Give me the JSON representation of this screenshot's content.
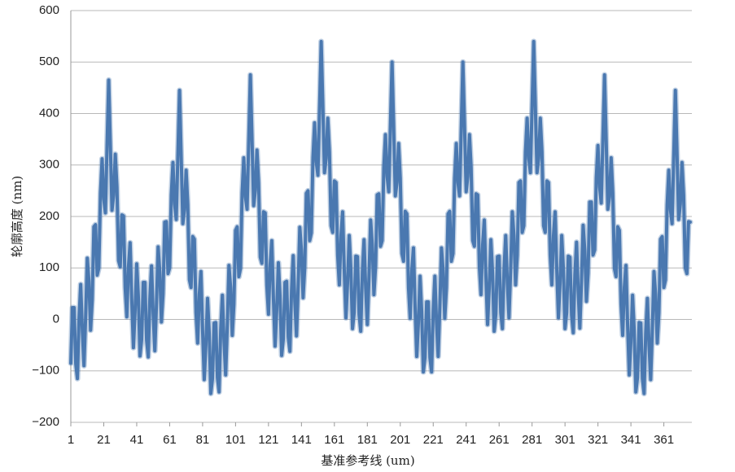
{
  "chart_data": {
    "type": "line",
    "x_label": "基准参考线 (um)",
    "y_label": "轮廓高度 (nm)",
    "xlim": [
      1,
      378
    ],
    "xticks": [
      1,
      21,
      41,
      61,
      81,
      101,
      121,
      141,
      161,
      181,
      201,
      221,
      241,
      261,
      281,
      301,
      321,
      341,
      361
    ],
    "ylim": [
      -200,
      600
    ],
    "yticks": [
      {
        "value": -200,
        "label": "−200"
      },
      {
        "value": -100,
        "label": "−100"
      },
      0,
      100,
      200,
      300,
      400,
      500,
      600
    ],
    "grid": true,
    "x": [
      1,
      2,
      3,
      4,
      5,
      6,
      7,
      8,
      9,
      10,
      11,
      12,
      13,
      14,
      15,
      16,
      17,
      18,
      19,
      20,
      21,
      22,
      23,
      24,
      25,
      26,
      27,
      28,
      29,
      30,
      31,
      32,
      33,
      34,
      35,
      36,
      37,
      38,
      39,
      40,
      41,
      42,
      43,
      44,
      45,
      46,
      47,
      48,
      49,
      50,
      51,
      52,
      53,
      54,
      55,
      56,
      57,
      58,
      59,
      60,
      61,
      62,
      63,
      64,
      65,
      66,
      67,
      68,
      69,
      70,
      71,
      72,
      73,
      74,
      75,
      76,
      77,
      78,
      79,
      80,
      81,
      82,
      83,
      84,
      85,
      86,
      87,
      88,
      89,
      90,
      91,
      92,
      93,
      94,
      95,
      96,
      97,
      98,
      99,
      100,
      101,
      102,
      103,
      104,
      105,
      106,
      107,
      108,
      109,
      110,
      111,
      112,
      113,
      114,
      115,
      116,
      117,
      118,
      119,
      120,
      121,
      122,
      123,
      124,
      125,
      126,
      127,
      128,
      129,
      130,
      131,
      132,
      133,
      134,
      135,
      136,
      137,
      138,
      139,
      140,
      141,
      142,
      143,
      144,
      145,
      146,
      147,
      148,
      149,
      150,
      151,
      152,
      153,
      154,
      155,
      156,
      157,
      158,
      159,
      160,
      161,
      162,
      163,
      164,
      165,
      166,
      167,
      168,
      169,
      170,
      171,
      172,
      173,
      174,
      175,
      176,
      177,
      178,
      179,
      180,
      181,
      182,
      183,
      184,
      185,
      186,
      187,
      188,
      189,
      190,
      191,
      192,
      193,
      194,
      195,
      196,
      197,
      198,
      199,
      200,
      201,
      202,
      203,
      204,
      205,
      206,
      207,
      208,
      209,
      210,
      211,
      212,
      213,
      214,
      215,
      216,
      217,
      218,
      219,
      220,
      221,
      222,
      223,
      224,
      225,
      226,
      227,
      228,
      229,
      230,
      231,
      232,
      233,
      234,
      235,
      236,
      237,
      238,
      239,
      240,
      241,
      242,
      243,
      244,
      245,
      246,
      247,
      248,
      249,
      250,
      251,
      252,
      253,
      254,
      255,
      256,
      257,
      258,
      259,
      260,
      261,
      262,
      263,
      264,
      265,
      266,
      267,
      268,
      269,
      270,
      271,
      272,
      273,
      274,
      275,
      276,
      277,
      278,
      279,
      280,
      281,
      282,
      283,
      284,
      285,
      286,
      287,
      288,
      289,
      290,
      291,
      292,
      293,
      294,
      295,
      296,
      297,
      298,
      299,
      300,
      301,
      302,
      303,
      304,
      305,
      306,
      307,
      308,
      309,
      310,
      311,
      312,
      313,
      314,
      315,
      316,
      317,
      318,
      319,
      320,
      321,
      322,
      323,
      324,
      325,
      326,
      327,
      328,
      329,
      330,
      331,
      332,
      333,
      334,
      335,
      336,
      337,
      338,
      339,
      340,
      341,
      342,
      343,
      344,
      345,
      346,
      347,
      348,
      349,
      350,
      351,
      352,
      353,
      354,
      355,
      356,
      357,
      358,
      359,
      360,
      361,
      362,
      363,
      364,
      365,
      366,
      367,
      368,
      369,
      370,
      371,
      372,
      373,
      374,
      375,
      376,
      377
    ],
    "series": [
      {
        "color": "#4a78b0",
        "values": [
          -85,
          23,
          23,
          -86,
          -115,
          2,
          68,
          -22,
          -90,
          4,
          119,
          74,
          -21,
          38,
          180,
          184,
          86,
          100,
          245,
          312,
          234,
          207,
          338,
          465,
          340,
          212,
          241,
          321,
          257,
          114,
          102,
          203,
          201,
          61,
          5,
          102,
          149,
          37,
          -55,
          15,
          108,
          44,
          -71,
          -39,
          72,
          72,
          -40,
          -73,
          41,
          104,
          10,
          -61,
          30,
          141,
          93,
          -5,
          50,
          189,
          190,
          89,
          100,
          242,
          305,
          224,
          194,
          321,
          445,
          317,
          186,
          213,
          290,
          223,
          77,
          62,
          161,
          156,
          13,
          -46,
          49,
          93,
          -22,
          -117,
          -50,
          41,
          -26,
          -144,
          -115,
          -7,
          -6,
          -113,
          -141,
          -21,
          47,
          -42,
          -108,
          -12,
          105,
          62,
          -31,
          29,
          173,
          180,
          83,
          99,
          246,
          314,
          238,
          214,
          346,
          475,
          350,
          221,
          250,
          329,
          265,
          121,
          109,
          209,
          207,
          66,
          10,
          106,
          153,
          40,
          -52,
          18,
          110,
          46,
          -70,
          -38,
          72,
          74,
          -34,
          -62,
          56,
          124,
          34,
          -32,
          63,
          179,
          135,
          42,
          101,
          245,
          250,
          153,
          168,
          315,
          382,
          306,
          280,
          411,
          540,
          414,
          285,
          313,
          391,
          326,
          182,
          169,
          269,
          266,
          124,
          67,
          163,
          209,
          96,
          3,
          71,
          163,
          98,
          -18,
          13,
          123,
          122,
          10,
          -23,
          92,
          155,
          61,
          -10,
          82,
          193,
          145,
          48,
          103,
          242,
          244,
          142,
          153,
          295,
          359,
          278,
          248,
          376,
          500,
          371,
          240,
          266,
          342,
          275,
          128,
          113,
          210,
          205,
          61,
          2,
          95,
          139,
          23,
          -72,
          -6,
          84,
          16,
          -102,
          -74,
          34,
          34,
          -74,
          -102,
          16,
          84,
          -6,
          -72,
          23,
          139,
          95,
          2,
          61,
          205,
          210,
          113,
          128,
          275,
          342,
          266,
          240,
          371,
          500,
          376,
          248,
          278,
          359,
          295,
          153,
          142,
          244,
          242,
          103,
          48,
          145,
          193,
          82,
          -10,
          61,
          155,
          92,
          -23,
          10,
          122,
          123,
          13,
          -18,
          98,
          163,
          71,
          3,
          96,
          209,
          163,
          67,
          124,
          266,
          269,
          169,
          182,
          326,
          391,
          313,
          285,
          414,
          540,
          414,
          285,
          313,
          391,
          326,
          182,
          169,
          269,
          266,
          124,
          67,
          163,
          209,
          96,
          3,
          71,
          163,
          98,
          -18,
          13,
          123,
          121,
          8,
          -26,
          87,
          150,
          55,
          -17,
          73,
          183,
          134,
          35,
          90,
          228,
          228,
          125,
          135,
          276,
          338,
          257,
          226,
          352,
          475,
          346,
          214,
          238,
          314,
          246,
          99,
          83,
          180,
          173,
          29,
          -31,
          62,
          105,
          -12,
          -108,
          -42,
          47,
          -21,
          -141,
          -113,
          -6,
          -7,
          -115,
          -144,
          -26,
          41,
          -50,
          -117,
          -22,
          93,
          49,
          -46,
          13,
          156,
          161,
          62,
          77,
          223,
          290,
          213,
          186,
          317,
          445,
          321,
          194,
          224,
          305,
          242,
          100,
          89,
          190,
          189
        ]
      }
    ]
  }
}
